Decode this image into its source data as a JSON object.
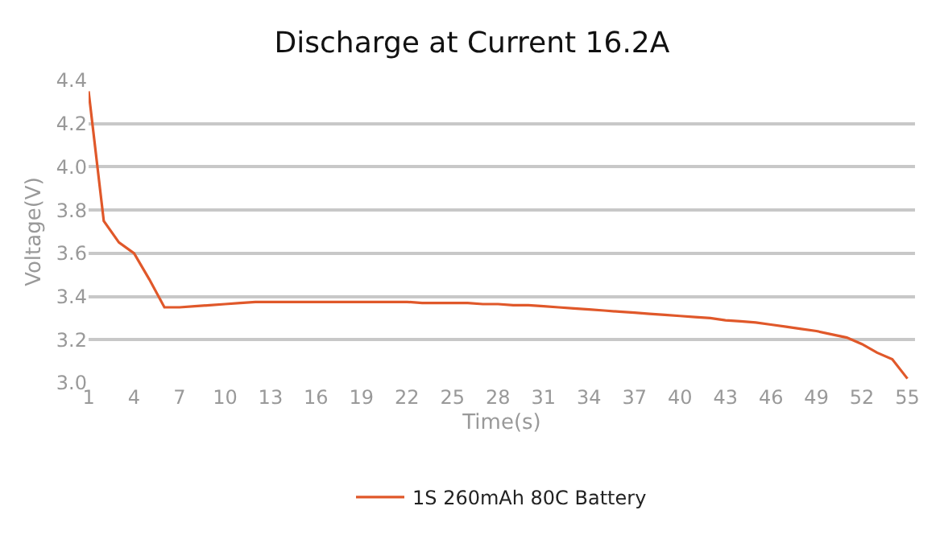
{
  "chart_data": {
    "type": "line",
    "title": "Discharge at Current 16.2A",
    "xlabel": "Time(s)",
    "ylabel": "Voltage(V)",
    "x": [
      1,
      2,
      3,
      4,
      5,
      6,
      7,
      8,
      9,
      10,
      11,
      12,
      13,
      14,
      15,
      16,
      17,
      18,
      19,
      20,
      21,
      22,
      23,
      24,
      25,
      26,
      27,
      28,
      29,
      30,
      31,
      32,
      33,
      34,
      35,
      36,
      37,
      38,
      39,
      40,
      41,
      42,
      43,
      44,
      45,
      46,
      47,
      48,
      49,
      50,
      51,
      52,
      53,
      54,
      55
    ],
    "series": [
      {
        "name": "1S 260mAh 80C Battery",
        "color": "#e0582a",
        "values": [
          4.35,
          3.75,
          3.65,
          3.6,
          3.48,
          3.35,
          3.35,
          3.355,
          3.36,
          3.365,
          3.37,
          3.375,
          3.375,
          3.375,
          3.375,
          3.375,
          3.375,
          3.375,
          3.375,
          3.375,
          3.375,
          3.375,
          3.37,
          3.37,
          3.37,
          3.37,
          3.365,
          3.365,
          3.36,
          3.36,
          3.355,
          3.35,
          3.345,
          3.34,
          3.335,
          3.33,
          3.325,
          3.32,
          3.315,
          3.31,
          3.305,
          3.3,
          3.29,
          3.285,
          3.28,
          3.27,
          3.26,
          3.25,
          3.24,
          3.225,
          3.21,
          3.18,
          3.14,
          3.11,
          3.02
        ]
      }
    ],
    "xlim": [
      1,
      55.5
    ],
    "xticks": [
      1,
      4,
      7,
      10,
      13,
      16,
      19,
      22,
      25,
      28,
      31,
      34,
      37,
      40,
      43,
      46,
      49,
      52,
      55
    ],
    "ylim": [
      3.0,
      4.4
    ],
    "yticks": [
      {
        "value": 3,
        "label": "3.0"
      },
      3.2,
      3.4,
      3.6,
      3.8,
      {
        "value": 4,
        "label": "4.0"
      },
      4.2,
      4.4
    ],
    "grid": "y",
    "legend": "bottom",
    "marker": "none",
    "line_style": "solid"
  }
}
